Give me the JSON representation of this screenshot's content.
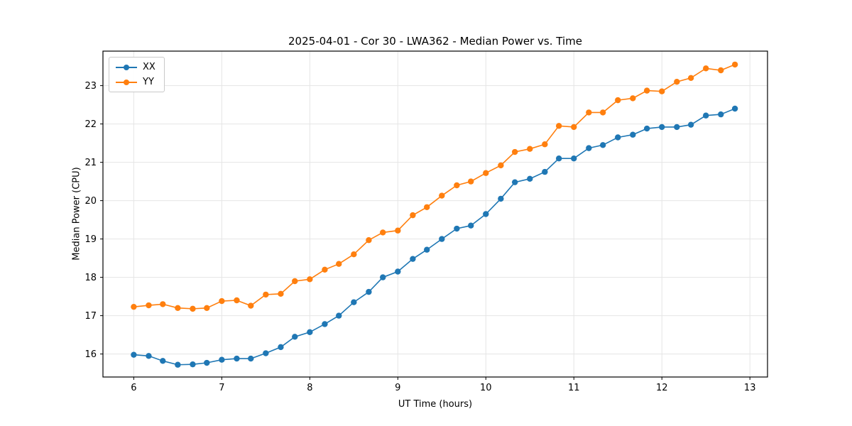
{
  "chart_data": {
    "type": "line",
    "title": "2025-04-01 - Cor 30 - LWA362 - Median Power vs. Time",
    "xlabel": "UT Time (hours)",
    "ylabel": "Median Power (CPU)",
    "xlim": [
      5.65,
      13.2
    ],
    "ylim": [
      15.4,
      23.9
    ],
    "xticks": [
      6,
      7,
      8,
      9,
      10,
      11,
      12,
      13
    ],
    "yticks": [
      16,
      17,
      18,
      19,
      20,
      21,
      22,
      23
    ],
    "grid": true,
    "grid_color": "#e5e5e5",
    "frame_color": "#000000",
    "legend_position": "upper left",
    "x": [
      6.0,
      6.17,
      6.33,
      6.5,
      6.67,
      6.83,
      7.0,
      7.17,
      7.33,
      7.5,
      7.67,
      7.83,
      8.0,
      8.17,
      8.33,
      8.5,
      8.67,
      8.83,
      9.0,
      9.17,
      9.33,
      9.5,
      9.67,
      9.83,
      10.0,
      10.17,
      10.33,
      10.5,
      10.67,
      10.83,
      11.0,
      11.17,
      11.33,
      11.5,
      11.67,
      11.83,
      12.0,
      12.17,
      12.33,
      12.5,
      12.67,
      12.83
    ],
    "series": [
      {
        "name": "XX",
        "color": "#1f77b4",
        "values": [
          15.98,
          15.95,
          15.82,
          15.72,
          15.73,
          15.77,
          15.85,
          15.88,
          15.88,
          16.02,
          16.18,
          16.45,
          16.57,
          16.78,
          17.0,
          17.35,
          17.62,
          18.0,
          18.15,
          18.48,
          18.72,
          19.0,
          19.27,
          19.35,
          19.65,
          20.05,
          20.48,
          20.57,
          20.75,
          21.1,
          21.1,
          21.37,
          21.45,
          21.65,
          21.72,
          21.88,
          21.92,
          21.92,
          21.98,
          22.22,
          22.25,
          22.4
        ]
      },
      {
        "name": "YY",
        "color": "#ff7f0e",
        "values": [
          17.23,
          17.27,
          17.3,
          17.2,
          17.18,
          17.2,
          17.38,
          17.4,
          17.26,
          17.55,
          17.57,
          17.9,
          17.95,
          18.2,
          18.35,
          18.6,
          18.97,
          19.17,
          19.22,
          19.62,
          19.83,
          20.13,
          20.4,
          20.5,
          20.72,
          20.92,
          21.27,
          21.35,
          21.47,
          21.95,
          21.92,
          22.3,
          22.3,
          22.62,
          22.67,
          22.87,
          22.85,
          23.1,
          23.2,
          23.45,
          23.4,
          23.55
        ]
      }
    ]
  }
}
